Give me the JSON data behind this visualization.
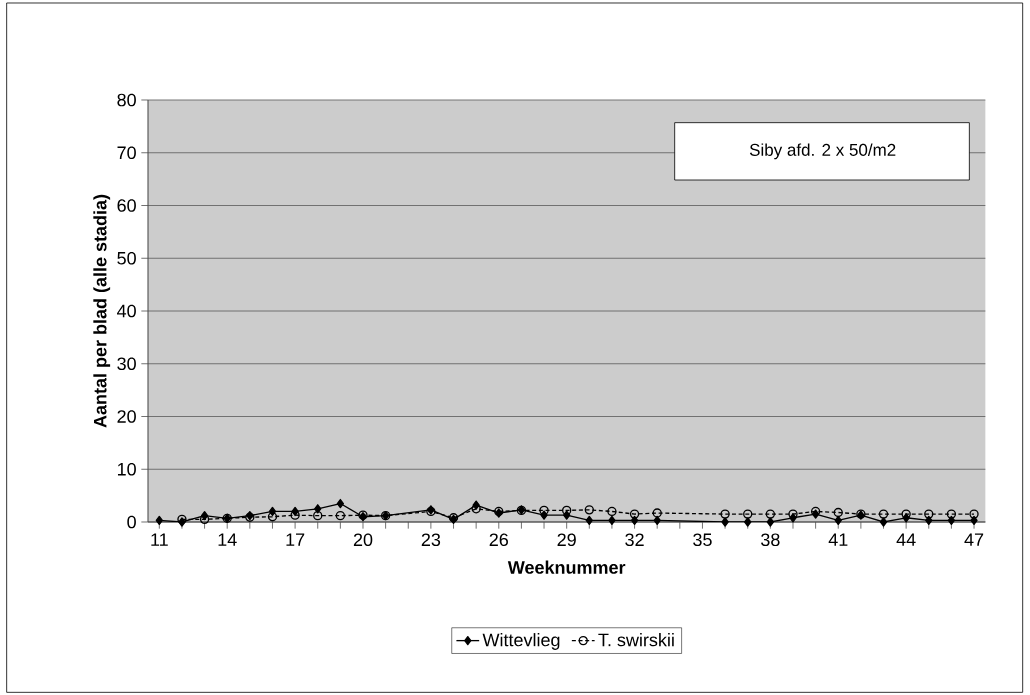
{
  "chart_data": {
    "type": "line",
    "xlabel": "Weeknummer",
    "ylabel": "Aantal per blad (alle stadia)",
    "annotations": [
      "Siby afd. 2 x 50/m2"
    ],
    "xlim": [
      10.5,
      47.5
    ],
    "ylim": [
      0,
      80
    ],
    "yticks": [
      0,
      10,
      20,
      30,
      40,
      50,
      60,
      70,
      80
    ],
    "xticks": [
      11,
      {
        "value": 12,
        "label": null
      },
      {
        "value": 13,
        "label": null
      },
      14,
      {
        "value": 15,
        "label": null
      },
      {
        "value": 16,
        "label": null
      },
      17,
      {
        "value": 18,
        "label": null
      },
      {
        "value": 19,
        "label": null
      },
      20,
      {
        "value": 21,
        "label": null
      },
      {
        "value": 22,
        "label": null
      },
      23,
      {
        "value": 24,
        "label": null
      },
      {
        "value": 25,
        "label": null
      },
      26,
      {
        "value": 27,
        "label": null
      },
      {
        "value": 28,
        "label": null
      },
      29,
      {
        "value": 30,
        "label": null
      },
      {
        "value": 31,
        "label": null
      },
      32,
      {
        "value": 33,
        "label": null
      },
      {
        "value": 34,
        "label": null
      },
      35,
      {
        "value": 36,
        "label": null
      },
      {
        "value": 37,
        "label": null
      },
      38,
      {
        "value": 39,
        "label": null
      },
      {
        "value": 40,
        "label": null
      },
      41,
      {
        "value": 42,
        "label": null
      },
      {
        "value": 43,
        "label": null
      },
      44,
      {
        "value": 45,
        "label": null
      },
      {
        "value": 46,
        "label": null
      },
      47
    ],
    "grid": "y",
    "legend": "bottom",
    "series": [
      {
        "name": "Wittevlieg",
        "color": "#000000",
        "marker": "diamond",
        "line_style": "solid",
        "x": [
          11,
          12,
          13,
          14,
          15,
          16,
          17,
          18,
          19,
          20,
          21,
          23,
          24,
          25,
          26,
          27,
          28,
          29,
          30,
          31,
          32,
          33,
          36,
          37,
          38,
          39,
          40,
          41,
          42,
          43,
          44,
          45,
          46,
          47
        ],
        "values": [
          0.3,
          0,
          1.2,
          0.7,
          1.2,
          2,
          2,
          2.5,
          3.5,
          1,
          1.2,
          2.3,
          0.5,
          3.2,
          1.7,
          2.3,
          1.3,
          1.3,
          0.3,
          0.3,
          0.3,
          0.3,
          0,
          0,
          0,
          0.8,
          1.5,
          0.3,
          1.3,
          0,
          0.8,
          0.3,
          0.3,
          0.3
        ]
      },
      {
        "name": "T. swirskii",
        "color": "#000000",
        "marker": "circle",
        "line_style": "dotted",
        "x": [
          12,
          13,
          14,
          15,
          16,
          17,
          18,
          19,
          20,
          21,
          23,
          24,
          25,
          26,
          27,
          28,
          29,
          30,
          31,
          32,
          33,
          36,
          37,
          38,
          39,
          40,
          41,
          42,
          43,
          44,
          45,
          46,
          47
        ],
        "values": [
          0.5,
          0.5,
          0.7,
          0.9,
          1,
          1.3,
          1.2,
          1.2,
          1.3,
          1.2,
          2,
          0.8,
          2.5,
          2,
          2.2,
          2.2,
          2.2,
          2.3,
          2,
          1.5,
          1.7,
          1.5,
          1.5,
          1.5,
          1.5,
          2,
          1.8,
          1.5,
          1.5,
          1.5,
          1.5,
          1.5,
          1.5
        ]
      }
    ]
  }
}
